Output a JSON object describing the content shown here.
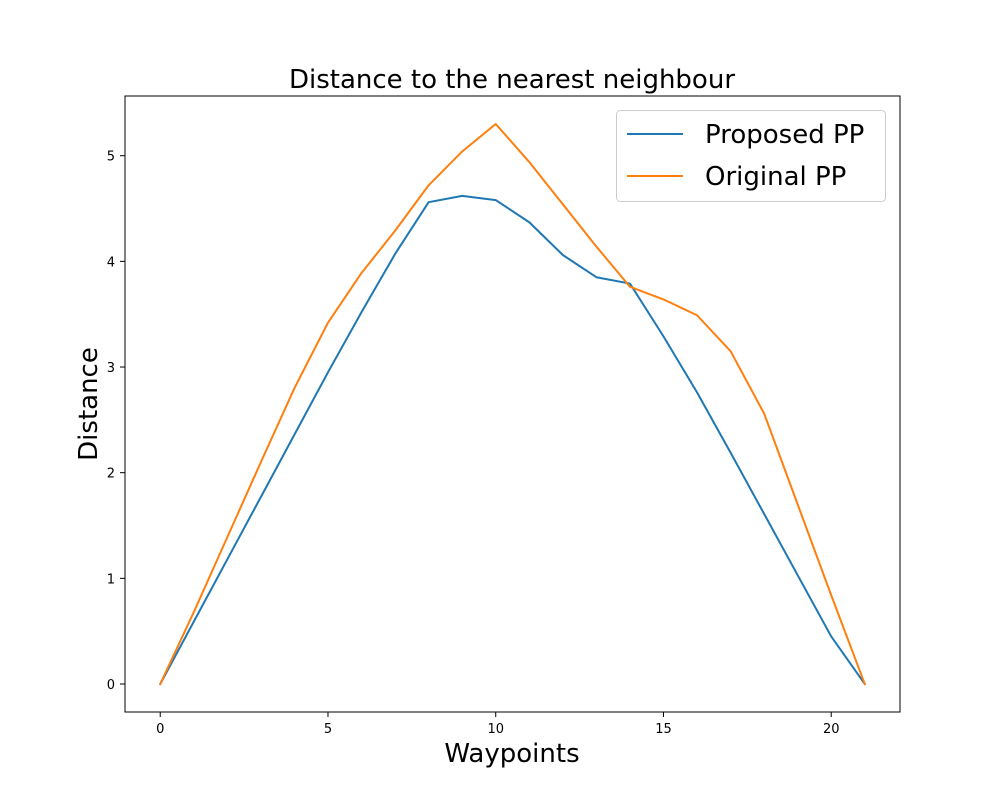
{
  "chart_data": {
    "type": "line",
    "title": "Distance to the nearest neighbour",
    "xlabel": "Waypoints",
    "ylabel": "Distance",
    "xlim": [
      -1.05,
      22.05
    ],
    "ylim": [
      -0.265,
      5.565
    ],
    "xticks": [
      0,
      5,
      10,
      15,
      20
    ],
    "yticks": [
      0,
      1,
      2,
      3,
      4,
      5
    ],
    "grid": false,
    "legend_position": "upper-right",
    "x": [
      0,
      1,
      2,
      3,
      4,
      5,
      6,
      7,
      8,
      9,
      10,
      11,
      12,
      13,
      14,
      15,
      16,
      17,
      18,
      19,
      20,
      21
    ],
    "series": [
      {
        "name": "Proposed PP",
        "color": "#1f77b4",
        "values": [
          0,
          0.59,
          1.18,
          1.77,
          2.36,
          2.95,
          3.52,
          4.07,
          4.56,
          4.62,
          4.58,
          4.37,
          4.06,
          3.85,
          3.79,
          3.29,
          2.76,
          2.19,
          1.61,
          1.03,
          0.45,
          0
        ]
      },
      {
        "name": "Original PP",
        "color": "#ff7f0e",
        "values": [
          0,
          0.68,
          1.39,
          2.1,
          2.8,
          3.42,
          3.89,
          4.29,
          4.72,
          5.04,
          5.3,
          4.94,
          4.54,
          4.14,
          3.76,
          3.64,
          3.49,
          3.15,
          2.56,
          1.7,
          0.84,
          0
        ]
      }
    ]
  }
}
